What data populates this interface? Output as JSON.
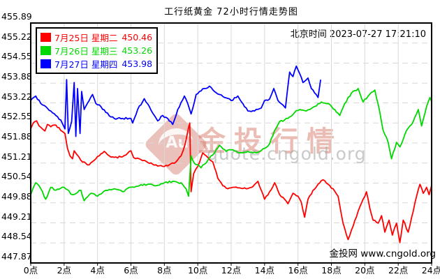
{
  "title": "工行纸黄金 72小时行情走势图",
  "beijing_time_label": "北京时间",
  "timestamp": "2023-07-27 17:21:10",
  "source_note": "金投网 www.cngold.org",
  "watermark": {
    "brand": "金投行情",
    "logo_text": "Au",
    "url": "quote.cngold.org"
  },
  "legend": {
    "items": [
      {
        "label": "7月25日 星期二",
        "value": "450.46",
        "color": "#ff0000"
      },
      {
        "label": "7月26日 星期三",
        "value": "453.26",
        "color": "#00d800"
      },
      {
        "label": "7月27日 星期四",
        "value": "453.98",
        "color": "#0000ff"
      }
    ]
  },
  "chart_data": {
    "type": "line",
    "title": "工行纸黄金 72小时行情走势图",
    "xlabel": "时间(点)",
    "ylabel": "价格(元/克)",
    "xlim": [
      0,
      24
    ],
    "ylim": [
      447.87,
      455.89
    ],
    "grid": true,
    "legend_position": "top-left",
    "x_ticks": [
      0,
      2,
      4,
      6,
      8,
      10,
      12,
      14,
      16,
      18,
      20,
      22,
      24
    ],
    "x_tick_labels": [
      "0点",
      "2点",
      "4点",
      "6点",
      "8点",
      "10点",
      "12点",
      "14点",
      "16点",
      "18点",
      "20点",
      "22点",
      "24点"
    ],
    "y_ticks": [
      455.89,
      455.22,
      454.55,
      453.88,
      453.22,
      452.55,
      451.88,
      451.21,
      450.54,
      449.88,
      449.21,
      448.54,
      447.87
    ],
    "y_tick_labels": [
      "455.89",
      "455.22",
      "454.55",
      "453.88",
      "453.22",
      "452.55",
      "451.88",
      "451.21",
      "450.54",
      "449.88",
      "449.21",
      "448.54",
      "447.87"
    ],
    "colors": {
      "grid": "#d8d8d8",
      "border": "#000000"
    },
    "series": [
      {
        "name": "7月25日 星期二",
        "close": 450.46,
        "color": "#ff0000",
        "points": [
          [
            0,
            452.35
          ],
          [
            0.15,
            452.55
          ],
          [
            0.35,
            452.62
          ],
          [
            0.5,
            452.45
          ],
          [
            0.7,
            452.35
          ],
          [
            0.85,
            452.28
          ],
          [
            1.0,
            452.5
          ],
          [
            1.2,
            452.42
          ],
          [
            1.5,
            452.48
          ],
          [
            1.8,
            452.3
          ],
          [
            2.05,
            452.2
          ],
          [
            2.2,
            451.7
          ],
          [
            2.35,
            451.45
          ],
          [
            2.5,
            451.35
          ],
          [
            2.6,
            451.62
          ],
          [
            2.75,
            451.5
          ],
          [
            3.0,
            451.3
          ],
          [
            3.3,
            451.2
          ],
          [
            3.5,
            451.15
          ],
          [
            3.8,
            451.3
          ],
          [
            4.1,
            451.45
          ],
          [
            4.4,
            451.6
          ],
          [
            4.7,
            451.45
          ],
          [
            5.0,
            451.4
          ],
          [
            5.5,
            451.42
          ],
          [
            6.0,
            451.62
          ],
          [
            6.15,
            451.4
          ],
          [
            6.5,
            451.35
          ],
          [
            6.8,
            451.3
          ],
          [
            7.1,
            451.2
          ],
          [
            7.5,
            451.15
          ],
          [
            7.9,
            451.1
          ],
          [
            8.3,
            451.15
          ],
          [
            8.7,
            451.25
          ],
          [
            9.0,
            451.45
          ],
          [
            9.25,
            451.85
          ],
          [
            9.45,
            452.4
          ],
          [
            9.52,
            452.55
          ],
          [
            9.6,
            450.25
          ],
          [
            9.75,
            450.85
          ],
          [
            10.0,
            451.1
          ],
          [
            10.3,
            451.55
          ],
          [
            10.6,
            451.4
          ],
          [
            10.9,
            451.25
          ],
          [
            11.2,
            450.7
          ],
          [
            11.5,
            450.45
          ],
          [
            11.8,
            450.35
          ],
          [
            12.1,
            450.4
          ],
          [
            12.5,
            450.38
          ],
          [
            12.9,
            450.35
          ],
          [
            13.3,
            450.42
          ],
          [
            13.6,
            450.6
          ],
          [
            13.8,
            450.3
          ],
          [
            14.0,
            450.0
          ],
          [
            14.3,
            450.25
          ],
          [
            14.6,
            450.55
          ],
          [
            14.9,
            450.15
          ],
          [
            15.2,
            450.0
          ],
          [
            15.4,
            449.85
          ],
          [
            15.7,
            450.2
          ],
          [
            16.0,
            450.1
          ],
          [
            16.2,
            449.9
          ],
          [
            16.4,
            449.4
          ],
          [
            16.6,
            450.0
          ],
          [
            16.9,
            450.3
          ],
          [
            17.2,
            450.5
          ],
          [
            17.5,
            450.65
          ],
          [
            17.8,
            450.5
          ],
          [
            18.1,
            450.35
          ],
          [
            18.4,
            450.1
          ],
          [
            18.7,
            449.2
          ],
          [
            19.0,
            448.65
          ],
          [
            19.3,
            449.1
          ],
          [
            19.6,
            449.6
          ],
          [
            19.9,
            450.0
          ],
          [
            20.1,
            450.25
          ],
          [
            20.3,
            449.7
          ],
          [
            20.5,
            449.3
          ],
          [
            20.8,
            449.2
          ],
          [
            21.0,
            449.45
          ],
          [
            21.2,
            448.9
          ],
          [
            21.45,
            449.3
          ],
          [
            21.65,
            448.8
          ],
          [
            21.9,
            449.2
          ],
          [
            22.1,
            448.55
          ],
          [
            22.3,
            449.3
          ],
          [
            22.6,
            448.9
          ],
          [
            22.9,
            449.6
          ],
          [
            23.1,
            450.1
          ],
          [
            23.3,
            450.5
          ],
          [
            23.5,
            450.2
          ],
          [
            23.7,
            450.4
          ],
          [
            23.85,
            450.15
          ],
          [
            24,
            450.46
          ]
        ]
      },
      {
        "name": "7月26日 星期三",
        "close": 453.26,
        "color": "#00d800",
        "points": [
          [
            0,
            450.15
          ],
          [
            0.3,
            450.55
          ],
          [
            0.6,
            450.35
          ],
          [
            0.9,
            450.0
          ],
          [
            1.2,
            450.4
          ],
          [
            1.5,
            450.3
          ],
          [
            2.0,
            450.4
          ],
          [
            2.5,
            450.15
          ],
          [
            3.0,
            450.3
          ],
          [
            3.2,
            449.95
          ],
          [
            3.6,
            450.2
          ],
          [
            4.0,
            450.1
          ],
          [
            4.5,
            450.3
          ],
          [
            5.0,
            450.35
          ],
          [
            5.5,
            450.25
          ],
          [
            6.0,
            450.4
          ],
          [
            6.5,
            450.45
          ],
          [
            7.0,
            450.5
          ],
          [
            7.5,
            450.45
          ],
          [
            8.0,
            450.55
          ],
          [
            8.5,
            450.6
          ],
          [
            9.0,
            450.55
          ],
          [
            9.3,
            450.35
          ],
          [
            9.45,
            450.1
          ],
          [
            9.6,
            451.45
          ],
          [
            9.8,
            451.2
          ],
          [
            10.2,
            451.05
          ],
          [
            10.6,
            451.3
          ],
          [
            11.0,
            451.55
          ],
          [
            11.3,
            451.8
          ],
          [
            11.7,
            451.6
          ],
          [
            12.0,
            451.65
          ],
          [
            12.5,
            451.55
          ],
          [
            13.0,
            451.6
          ],
          [
            13.5,
            451.55
          ],
          [
            14.0,
            451.7
          ],
          [
            14.3,
            451.85
          ],
          [
            14.6,
            452.3
          ],
          [
            14.9,
            452.6
          ],
          [
            15.2,
            452.65
          ],
          [
            15.5,
            452.75
          ],
          [
            15.8,
            452.9
          ],
          [
            16.1,
            453.0
          ],
          [
            16.5,
            452.95
          ],
          [
            17.0,
            453.1
          ],
          [
            17.4,
            453.25
          ],
          [
            17.8,
            453.2
          ],
          [
            18.2,
            453.0
          ],
          [
            18.5,
            452.8
          ],
          [
            18.8,
            453.2
          ],
          [
            19.2,
            453.55
          ],
          [
            19.6,
            453.7
          ],
          [
            19.9,
            453.25
          ],
          [
            20.2,
            453.45
          ],
          [
            20.6,
            453.65
          ],
          [
            20.9,
            452.9
          ],
          [
            21.1,
            452.3
          ],
          [
            21.4,
            451.9
          ],
          [
            21.6,
            451.35
          ],
          [
            21.9,
            451.9
          ],
          [
            22.1,
            451.75
          ],
          [
            22.5,
            452.3
          ],
          [
            22.9,
            452.6
          ],
          [
            23.2,
            453.0
          ],
          [
            23.4,
            452.45
          ],
          [
            23.7,
            453.1
          ],
          [
            23.9,
            453.4
          ],
          [
            24,
            453.26
          ]
        ]
      },
      {
        "name": "7月27日 星期四",
        "close": 453.98,
        "color": "#0000ff",
        "points": [
          [
            0,
            453.3
          ],
          [
            0.3,
            453.45
          ],
          [
            0.6,
            453.2
          ],
          [
            0.9,
            453.1
          ],
          [
            1.2,
            452.95
          ],
          [
            1.5,
            452.8
          ],
          [
            1.8,
            452.65
          ],
          [
            2.05,
            452.35
          ],
          [
            2.15,
            454.0
          ],
          [
            2.25,
            452.2
          ],
          [
            2.45,
            452.6
          ],
          [
            2.6,
            453.9
          ],
          [
            2.7,
            452.1
          ],
          [
            2.8,
            453.7
          ],
          [
            2.95,
            452.2
          ],
          [
            3.05,
            453.6
          ],
          [
            3.2,
            453.0
          ],
          [
            3.5,
            453.3
          ],
          [
            3.7,
            453.5
          ],
          [
            3.9,
            453.2
          ],
          [
            4.2,
            453.1
          ],
          [
            4.5,
            452.9
          ],
          [
            4.8,
            452.75
          ],
          [
            5.0,
            452.7
          ],
          [
            5.5,
            452.7
          ],
          [
            6.0,
            452.7
          ],
          [
            6.1,
            452.55
          ],
          [
            6.4,
            453.0
          ],
          [
            6.8,
            453.36
          ],
          [
            7.1,
            453.1
          ],
          [
            7.4,
            452.8
          ],
          [
            7.6,
            452.62
          ],
          [
            7.9,
            452.8
          ],
          [
            8.2,
            452.7
          ],
          [
            8.5,
            452.5
          ],
          [
            8.8,
            453.0
          ],
          [
            9.2,
            453.45
          ],
          [
            9.4,
            453.2
          ],
          [
            9.6,
            452.85
          ],
          [
            9.9,
            453.5
          ],
          [
            10.1,
            453.6
          ],
          [
            10.4,
            453.7
          ],
          [
            10.7,
            453.78
          ],
          [
            11.0,
            453.6
          ],
          [
            11.3,
            453.5
          ],
          [
            11.6,
            453.4
          ],
          [
            12.0,
            453.3
          ],
          [
            12.4,
            453.45
          ],
          [
            12.7,
            453.2
          ],
          [
            13.0,
            452.95
          ],
          [
            13.4,
            452.95
          ],
          [
            13.8,
            453.05
          ],
          [
            14.0,
            453.3
          ],
          [
            14.3,
            453.35
          ],
          [
            14.55,
            453.7
          ],
          [
            14.8,
            453.3
          ],
          [
            15.1,
            453.15
          ],
          [
            15.25,
            453.05
          ],
          [
            15.5,
            454.25
          ],
          [
            15.7,
            454.1
          ],
          [
            15.9,
            454.45
          ],
          [
            16.1,
            454.2
          ],
          [
            16.3,
            453.9
          ],
          [
            16.6,
            454.05
          ],
          [
            16.8,
            453.7
          ],
          [
            17.0,
            453.55
          ],
          [
            17.2,
            453.4
          ],
          [
            17.35,
            453.98
          ]
        ]
      }
    ]
  }
}
